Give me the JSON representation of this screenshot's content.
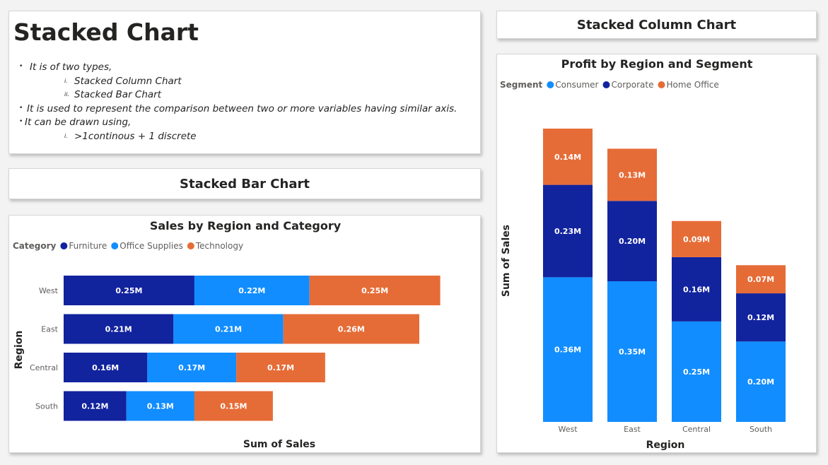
{
  "textbox": {
    "title": "Stacked Chart",
    "bullets": [
      {
        "level": 1,
        "marker": "•",
        "text": "It is of two types,"
      },
      {
        "level": 2,
        "marker": "i.",
        "text": "Stacked Column Chart"
      },
      {
        "level": 2,
        "marker": "ii.",
        "text": "Stacked Bar Chart"
      },
      {
        "level": 1,
        "marker": "•",
        "text": "It is used to represent the comparison between two or more variables having similar axis."
      },
      {
        "level": 1,
        "marker": "•",
        "text": "It can be drawn using,"
      },
      {
        "level": 2,
        "marker": "i.",
        "text": ">1continous + 1 discrete"
      }
    ]
  },
  "headers": {
    "bar": "Stacked Bar Chart",
    "column": "Stacked Column Chart"
  },
  "colors": {
    "furniture": "#12239e",
    "office_supplies": "#118dff",
    "technology": "#e66c37",
    "consumer": "#118dff",
    "corporate": "#12239e",
    "home_office": "#e66c37"
  },
  "chart_data": [
    {
      "type": "bar",
      "orientation": "horizontal",
      "stacked": true,
      "title": "Sales by Region and Category",
      "legend_title": "Category",
      "legend_position": "top-left",
      "categories": [
        "West",
        "East",
        "Central",
        "South"
      ],
      "series": [
        {
          "name": "Furniture",
          "values": [
            0.25,
            0.21,
            0.16,
            0.12
          ],
          "labels": [
            "0.25M",
            "0.21M",
            "0.16M",
            "0.12M"
          ]
        },
        {
          "name": "Office Supplies",
          "values": [
            0.22,
            0.21,
            0.17,
            0.13
          ],
          "labels": [
            "0.22M",
            "0.21M",
            "0.17M",
            "0.13M"
          ]
        },
        {
          "name": "Technology",
          "values": [
            0.25,
            0.26,
            0.17,
            0.15
          ],
          "labels": [
            "0.25M",
            "0.26M",
            "0.17M",
            "0.15M"
          ]
        }
      ],
      "xlabel": "Sum of Sales",
      "ylabel": "Region",
      "xlim": [
        0,
        0.8
      ],
      "grid": false
    },
    {
      "type": "bar",
      "orientation": "vertical",
      "stacked": true,
      "title": "Profit by Region and Segment",
      "legend_title": "Segment",
      "legend_position": "top-left",
      "categories": [
        "West",
        "East",
        "Central",
        "South"
      ],
      "series": [
        {
          "name": "Consumer",
          "values": [
            0.36,
            0.35,
            0.25,
            0.2
          ],
          "labels": [
            "0.36M",
            "0.35M",
            "0.25M",
            "0.20M"
          ]
        },
        {
          "name": "Corporate",
          "values": [
            0.23,
            0.2,
            0.16,
            0.12
          ],
          "labels": [
            "0.23M",
            "0.20M",
            "0.16M",
            "0.12M"
          ]
        },
        {
          "name": "Home Office",
          "values": [
            0.14,
            0.13,
            0.09,
            0.07
          ],
          "labels": [
            "0.14M",
            "0.13M",
            "0.09M",
            "0.07M"
          ]
        }
      ],
      "xlabel": "Region",
      "ylabel": "Sum of Sales",
      "ylim": [
        0,
        0.75
      ],
      "grid": false
    }
  ]
}
